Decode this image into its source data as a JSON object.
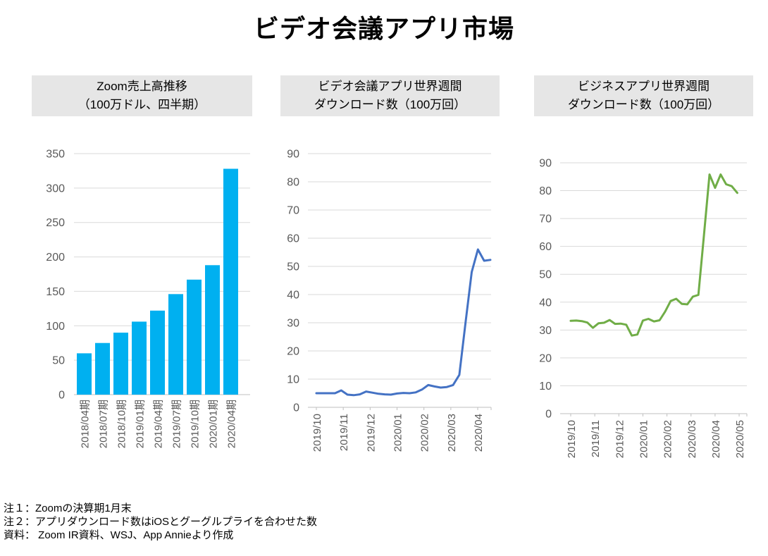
{
  "page": {
    "title": "ビデオ会議アプリ市場"
  },
  "colors": {
    "bar": "#00B0F0",
    "line_video": "#4472C4",
    "line_business": "#70AD47",
    "grid": "#D9D9D9",
    "axis": "#BFBFBF",
    "tick_label": "#595959",
    "header_bg": "#E6E6E6"
  },
  "notes": {
    "line1": "注１：Zoomの決算期1月末",
    "line2": "注２：アプリダウンロード数はiOSとグーグルプライを合わせた数",
    "line3": "資料： Zoom IR資料、WSJ、App Annieより作成"
  },
  "chart_data": [
    {
      "type": "bar",
      "title": "Zoom売上高推移（100万ドル、四半期）",
      "title_line1": "Zoom売上高推移",
      "title_line2": "（100万ドル、四半期）",
      "categories": [
        "2018/04期",
        "2018/07期",
        "2018/10期",
        "2019/01期",
        "2019/04期",
        "2019/07期",
        "2019/10期",
        "2020/01期",
        "2020/04期"
      ],
      "values": [
        60,
        75,
        90,
        106,
        122,
        146,
        167,
        188,
        328
      ],
      "ylim": [
        0,
        350
      ],
      "ytick_step": 50,
      "grid": true,
      "legend": "none",
      "color": "#00B0F0"
    },
    {
      "type": "line",
      "title": "ビデオ会議アプリ世界週間ダウンロード数（100万回）",
      "title_line1": "ビデオ会議アプリ世界週間",
      "title_line2": "ダウンロード数（100万回）",
      "x_tick_labels": [
        "2019/10",
        "2019/11",
        "2019/12",
        "2020/01",
        "2020/02",
        "2020/03",
        "2020/04"
      ],
      "x_unit": "week",
      "values": [
        5.0,
        5.0,
        5.0,
        5.0,
        6.0,
        4.5,
        4.3,
        4.6,
        5.6,
        5.2,
        4.8,
        4.6,
        4.5,
        4.9,
        5.1,
        5.0,
        5.3,
        6.3,
        7.9,
        7.4,
        7.0,
        7.2,
        7.9,
        11.5,
        30.0,
        48.0,
        56.0,
        52.0,
        52.3
      ],
      "ylim": [
        0,
        90
      ],
      "ytick_step": 10,
      "grid": true,
      "legend": "none",
      "color": "#4472C4"
    },
    {
      "type": "line",
      "title": "ビジネスアプリ世界週間ダウンロード数（100万回）",
      "title_line1": "ビジネスアプリ世界週間",
      "title_line2": "ダウンロード数（100万回）",
      "x_tick_labels": [
        "2019/10",
        "2019/11",
        "2019/12",
        "2020/01",
        "2020/02",
        "2020/03",
        "2020/04",
        "2020/05"
      ],
      "x_unit": "week",
      "values": [
        33.3,
        33.4,
        33.2,
        32.7,
        30.8,
        32.4,
        32.6,
        33.6,
        32.2,
        32.3,
        31.9,
        28.0,
        28.4,
        33.4,
        34.0,
        33.1,
        33.5,
        36.6,
        40.4,
        41.2,
        39.4,
        39.2,
        42.0,
        42.6,
        64.0,
        85.8,
        81.0,
        85.8,
        82.3,
        81.6,
        79.2
      ],
      "ylim": [
        0,
        90
      ],
      "ytick_step": 10,
      "grid": true,
      "legend": "none",
      "color": "#70AD47"
    }
  ]
}
